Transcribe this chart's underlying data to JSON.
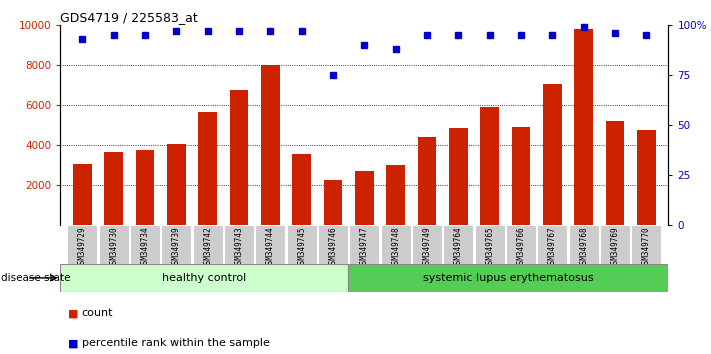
{
  "title": "GDS4719 / 225583_at",
  "samples": [
    "GSM349729",
    "GSM349730",
    "GSM349734",
    "GSM349739",
    "GSM349742",
    "GSM349743",
    "GSM349744",
    "GSM349745",
    "GSM349746",
    "GSM349747",
    "GSM349748",
    "GSM349749",
    "GSM349764",
    "GSM349765",
    "GSM349766",
    "GSM349767",
    "GSM349768",
    "GSM349769",
    "GSM349770"
  ],
  "counts": [
    3050,
    3650,
    3750,
    4050,
    5650,
    6750,
    8000,
    3550,
    2250,
    2700,
    3000,
    4400,
    4850,
    5900,
    4900,
    7050,
    9800,
    5200,
    4750
  ],
  "percentiles": [
    93,
    95,
    95,
    97,
    97,
    97,
    97,
    97,
    75,
    90,
    88,
    95,
    95,
    95,
    95,
    95,
    99,
    96,
    95
  ],
  "healthy_count": 9,
  "ylim_left": [
    0,
    10000
  ],
  "ylim_right": [
    0,
    100
  ],
  "yticks_left": [
    2000,
    4000,
    6000,
    8000,
    10000
  ],
  "yticks_right": [
    0,
    25,
    50,
    75,
    100
  ],
  "bar_color": "#cc2200",
  "dot_color": "#0000cc",
  "healthy_label": "healthy control",
  "disease_label": "systemic lupus erythematosus",
  "healthy_bg": "#ccffcc",
  "disease_bg": "#55cc55",
  "sample_bg": "#cccccc",
  "legend_count_label": "count",
  "legend_percentile_label": "percentile rank within the sample"
}
